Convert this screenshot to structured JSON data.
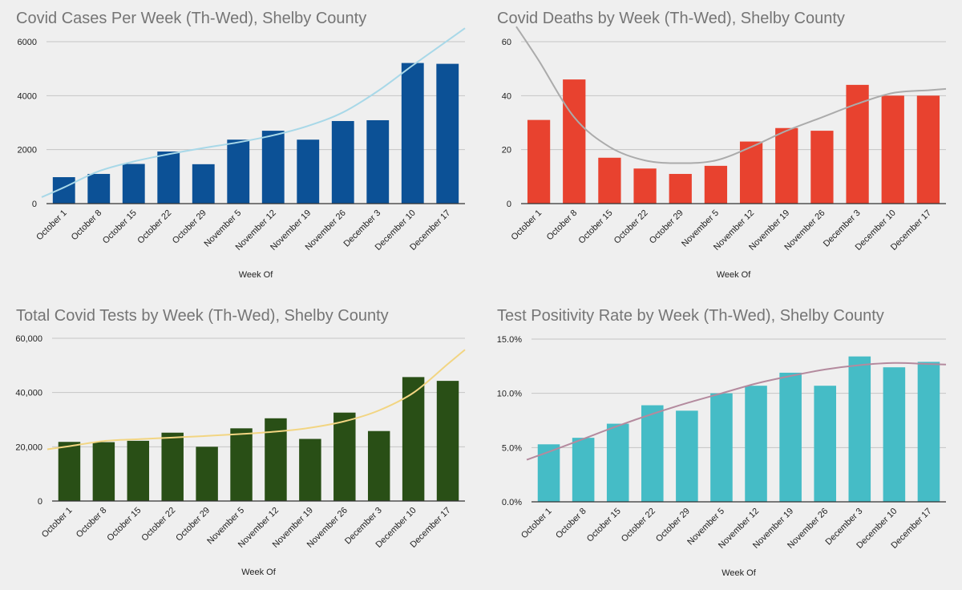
{
  "chart_data": [
    {
      "type": "bar",
      "title": "Covid Cases Per Week (Th-Wed), Shelby County",
      "xlabel": "Week Of",
      "ylabel": "",
      "categories": [
        "October 1",
        "October 8",
        "October 15",
        "October 22",
        "October 29",
        "November 5",
        "November 12",
        "November 19",
        "November 26",
        "December 3",
        "December 10",
        "December 17"
      ],
      "values": [
        980,
        1100,
        1470,
        1930,
        1460,
        2370,
        2700,
        2370,
        3060,
        3090,
        5210,
        5180
      ],
      "ylim": [
        0,
        6000
      ],
      "yticks": [
        0,
        2000,
        4000,
        6000
      ],
      "ytick_labels": [
        "0",
        "2000",
        "4000",
        "6000"
      ],
      "grid": true,
      "bar_color": "#0c5196",
      "trendline": {
        "color": "#a8d8e8",
        "points": [
          600,
          1200,
          1560,
          1830,
          2060,
          2270,
          2530,
          2880,
          3380,
          4170,
          5120,
          6040
        ]
      }
    },
    {
      "type": "bar",
      "title": "Covid Deaths by Week (Th-Wed), Shelby County",
      "xlabel": "Week Of",
      "ylabel": "",
      "categories": [
        "October 1",
        "October 8",
        "October 15",
        "October 22",
        "October 29",
        "November 5",
        "November 12",
        "November 19",
        "November 26",
        "December 3",
        "December 10",
        "December 17"
      ],
      "values": [
        31,
        46,
        17,
        13,
        11,
        14,
        23,
        28,
        27,
        44,
        40,
        40
      ],
      "ylim": [
        0,
        60
      ],
      "yticks": [
        0,
        20,
        40,
        60
      ],
      "ytick_labels": [
        "0",
        "20",
        "40",
        "60"
      ],
      "grid": true,
      "bar_color": "#e8422f",
      "trendline": {
        "color": "#ababab",
        "points": [
          53,
          32,
          21,
          16,
          15,
          16,
          21,
          27,
          32,
          37,
          41,
          42
        ]
      }
    },
    {
      "type": "bar",
      "title": "Total Covid Tests by Week (Th-Wed), Shelby County",
      "xlabel": "Week Of",
      "ylabel": "",
      "categories": [
        "October 1",
        "October 8",
        "October 15",
        "October 22",
        "October 29",
        "November 5",
        "November 12",
        "November 19",
        "November 26",
        "December 3",
        "December 10",
        "December 17"
      ],
      "values": [
        21800,
        21700,
        22200,
        25200,
        20000,
        26800,
        30500,
        22900,
        32600,
        25800,
        45700,
        44300
      ],
      "ylim": [
        0,
        60000
      ],
      "yticks": [
        0,
        20000,
        40000,
        60000
      ],
      "ytick_labels": [
        "0",
        "20,000",
        "40,000",
        "60,000"
      ],
      "grid": true,
      "bar_color": "#294f16",
      "trendline": {
        "color": "#f2d582",
        "points": [
          20200,
          22100,
          22800,
          23400,
          24000,
          24700,
          25600,
          27000,
          29400,
          33400,
          39900,
          50500
        ]
      }
    },
    {
      "type": "bar",
      "title": "Test Positivity Rate by Week (Th-Wed), Shelby County",
      "xlabel": "Week Of",
      "ylabel": "",
      "categories": [
        "October 1",
        "October 8",
        "October 15",
        "October 22",
        "October 29",
        "November 5",
        "November 12",
        "November 19",
        "November 26",
        "December 3",
        "December 10",
        "December 17"
      ],
      "values": [
        5.3,
        5.9,
        7.2,
        8.9,
        8.4,
        10.0,
        10.7,
        11.9,
        10.7,
        13.4,
        12.4,
        12.9
      ],
      "ylim": [
        0,
        15
      ],
      "yticks": [
        0,
        5,
        10,
        15
      ],
      "ytick_labels": [
        "0.0%",
        "5.0%",
        "10.0%",
        "15.0%"
      ],
      "grid": true,
      "bar_color": "#45bcc6",
      "trendline": {
        "color": "#b48a9e",
        "points": [
          4.6,
          5.8,
          7.0,
          8.1,
          9.1,
          10.0,
          10.9,
          11.6,
          12.2,
          12.6,
          12.8,
          12.7
        ]
      }
    }
  ]
}
